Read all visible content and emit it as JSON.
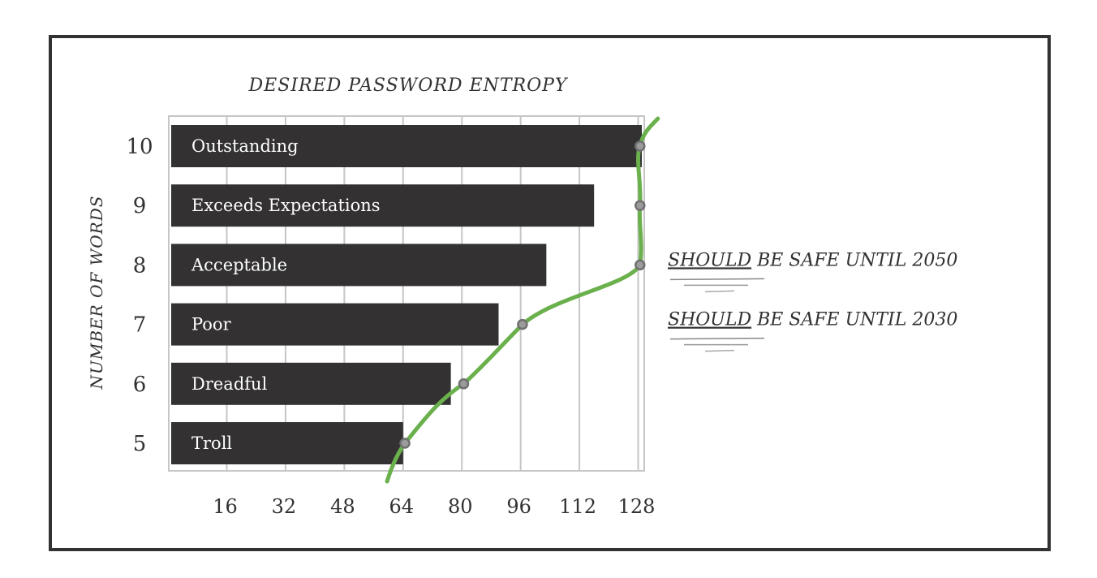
{
  "chart_data": {
    "type": "bar",
    "orientation": "horizontal",
    "title": "DESIRED PASSWORD ENTROPY",
    "ylabel": "NUMBER OF WORDS",
    "xlabel": "",
    "xlim": [
      0,
      130
    ],
    "x_ticks": [
      16,
      32,
      48,
      64,
      80,
      96,
      112,
      128
    ],
    "grid": true,
    "categories": [
      "10",
      "9",
      "8",
      "7",
      "6",
      "5"
    ],
    "series": [
      {
        "values": [
          129,
          116,
          103,
          90,
          77,
          64
        ],
        "labels": [
          "Outstanding",
          "Exceeds Expectations",
          "Acceptable",
          "Poor",
          "Dreadful",
          "Troll"
        ],
        "color": "#333132"
      }
    ],
    "line": {
      "color": "#6ab04c",
      "points": [
        {
          "y": "5",
          "x": 64.5
        },
        {
          "y": "6",
          "x": 80.5
        },
        {
          "y": "7",
          "x": 96.5
        },
        {
          "y": "8",
          "x": 128.5
        },
        {
          "y": "9",
          "x": 128.5
        },
        {
          "y": "10",
          "x": 128.5
        }
      ]
    },
    "annotations": [
      {
        "y": "8",
        "text_underlined": "SHOULD",
        "text": " BE SAFE UNTIL 2050"
      },
      {
        "y": "7",
        "text_underlined": "SHOULD",
        "text": " BE SAFE UNTIL 2030"
      }
    ]
  }
}
